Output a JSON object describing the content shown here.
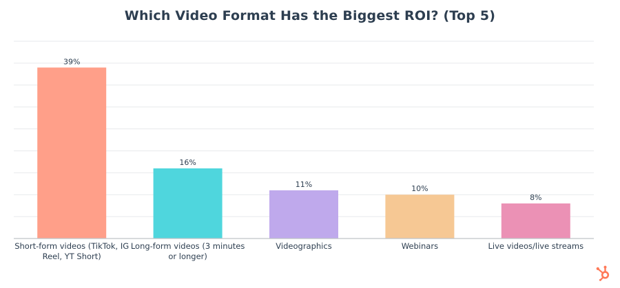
{
  "chart_data": {
    "type": "bar",
    "title": "Which Video Format Has the Biggest ROI? (Top 5)",
    "xlabel": "",
    "ylabel": "",
    "ylim": [
      0,
      45
    ],
    "grid": true,
    "categories": [
      "Short-form videos (TikTok, IG Reel, YT Short)",
      "Long-form videos (3 minutes or longer)",
      "Videographics",
      "Webinars",
      "Live videos/live streams"
    ],
    "category_lines": [
      [
        "Short-form videos (TikTok, IG",
        "Reel, YT Short)"
      ],
      [
        "Long-form videos (3 minutes",
        "or longer)"
      ],
      [
        "Videographics"
      ],
      [
        "Webinars"
      ],
      [
        "Live videos/live streams"
      ]
    ],
    "values": [
      39,
      16,
      11,
      10,
      8
    ],
    "value_labels": [
      "39%",
      "16%",
      "11%",
      "10%",
      "8%"
    ],
    "colors": [
      "#ff9f89",
      "#4fd6dd",
      "#bfa9ec",
      "#f6c894",
      "#eb91b5"
    ]
  },
  "colors": {
    "title": "#2d3e50",
    "grid": "#e7e9ec",
    "axis": "#bfc3c8",
    "label": "#2d3e50",
    "logo": "#ff7a59"
  },
  "logo": {
    "icon": "sprocket-logo-icon"
  }
}
